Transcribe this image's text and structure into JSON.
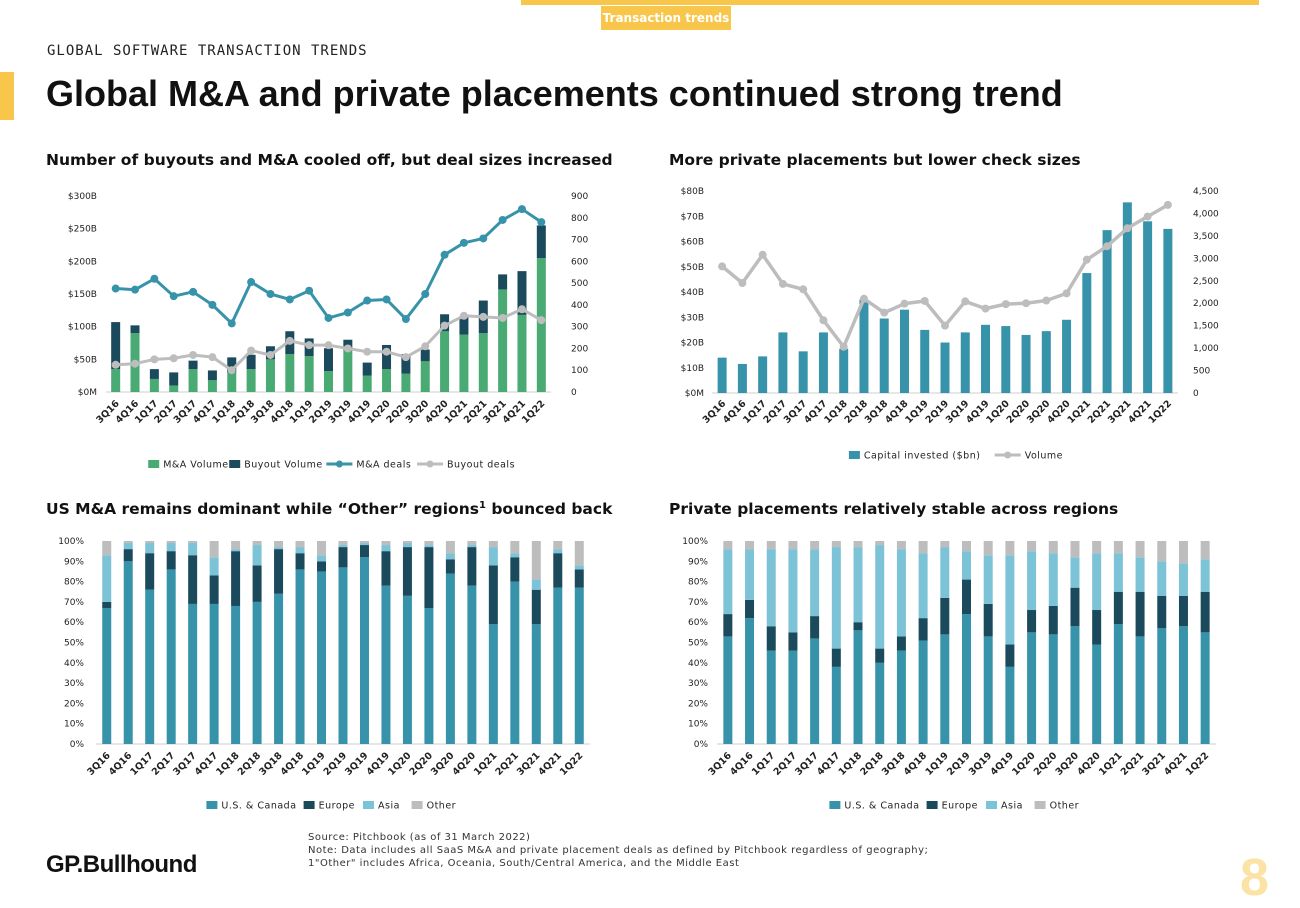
{
  "header": {
    "tag": "Transaction trends",
    "kicker": "GLOBAL SOFTWARE TRANSACTION TRENDS",
    "title": "Global M&A and private placements continued strong trend"
  },
  "colors": {
    "accent": "#f7c64b",
    "ma_volume": "#4aaa73",
    "buyout_volume": "#1b4a5c",
    "ma_deals": "#3793a9",
    "buyout_deals": "#bdbdbd",
    "capital": "#3793a9",
    "us_canada": "#3793a9",
    "europe": "#1b4a5c",
    "asia": "#7cc3d8",
    "other": "#bdbdbd"
  },
  "chart_data": [
    {
      "type": "bar",
      "title": "Number of buyouts and M&A cooled off, but deal sizes increased",
      "categories": [
        "3Q16",
        "4Q16",
        "1Q17",
        "2Q17",
        "3Q17",
        "4Q17",
        "1Q18",
        "2Q18",
        "3Q18",
        "4Q18",
        "1Q19",
        "2Q19",
        "3Q19",
        "4Q19",
        "1Q20",
        "2Q20",
        "3Q20",
        "4Q20",
        "1Q21",
        "2Q21",
        "3Q21",
        "4Q21",
        "1Q22"
      ],
      "y_left_ticks": [
        "$0M",
        "$50B",
        "$100B",
        "$150B",
        "$200B",
        "$250B",
        "$300B"
      ],
      "ylim_left": [
        0,
        300
      ],
      "y_right_ticks": [
        "0",
        "100",
        "200",
        "300",
        "400",
        "500",
        "600",
        "700",
        "800",
        "900"
      ],
      "ylim_right": [
        0,
        900
      ],
      "series": [
        {
          "name": "M&A Volume",
          "kind": "bar",
          "axis": "left",
          "values": [
            35,
            90,
            20,
            10,
            35,
            18,
            30,
            35,
            50,
            58,
            55,
            32,
            65,
            25,
            35,
            28,
            47,
            93,
            88,
            90,
            157,
            118,
            205
          ]
        },
        {
          "name": "Buyout Volume",
          "kind": "bar",
          "axis": "left",
          "values": [
            72,
            12,
            15,
            20,
            13,
            15,
            23,
            22,
            20,
            35,
            27,
            35,
            15,
            20,
            37,
            30,
            18,
            26,
            28,
            50,
            23,
            67,
            50
          ]
        },
        {
          "name": "M&A deals",
          "kind": "line",
          "axis": "right",
          "values": [
            475,
            470,
            520,
            440,
            460,
            400,
            315,
            505,
            450,
            425,
            465,
            340,
            365,
            420,
            425,
            335,
            450,
            630,
            685,
            705,
            790,
            840,
            780
          ]
        },
        {
          "name": "Buyout deals",
          "kind": "line",
          "axis": "right",
          "values": [
            125,
            130,
            150,
            155,
            170,
            160,
            100,
            190,
            170,
            235,
            215,
            215,
            200,
            185,
            185,
            160,
            210,
            305,
            350,
            345,
            340,
            380,
            330
          ]
        }
      ]
    },
    {
      "type": "bar",
      "title": "More private placements but lower check sizes",
      "categories": [
        "3Q16",
        "4Q16",
        "1Q17",
        "2Q17",
        "3Q17",
        "4Q17",
        "1Q18",
        "2Q18",
        "3Q18",
        "4Q18",
        "1Q19",
        "2Q19",
        "3Q19",
        "4Q19",
        "1Q20",
        "2Q20",
        "3Q20",
        "4Q20",
        "1Q21",
        "2Q21",
        "3Q21",
        "4Q21",
        "1Q22"
      ],
      "y_left_ticks": [
        "$0M",
        "$10B",
        "$20B",
        "$30B",
        "$40B",
        "$50B",
        "$60B",
        "$70B",
        "$80B"
      ],
      "ylim_left": [
        0,
        80
      ],
      "y_right_ticks": [
        "0",
        "500",
        "1,000",
        "1,500",
        "2,000",
        "2,500",
        "3,000",
        "3,500",
        "4,000",
        "4,500"
      ],
      "ylim_right": [
        0,
        4500
      ],
      "series": [
        {
          "name": "Capital invested ($bn)",
          "kind": "bar",
          "axis": "left",
          "values": [
            14,
            11.5,
            14.5,
            24,
            16.5,
            24,
            17.5,
            37,
            29.5,
            33,
            25,
            20,
            24,
            27,
            26.5,
            23,
            24.5,
            29,
            47.5,
            64.5,
            75.5,
            68,
            65
          ]
        },
        {
          "name": "Volume",
          "kind": "line",
          "axis": "right",
          "values": [
            2820,
            2450,
            3080,
            2430,
            2310,
            1620,
            1030,
            2100,
            1790,
            1990,
            2050,
            1500,
            2040,
            1880,
            1980,
            2000,
            2060,
            2220,
            2970,
            3270,
            3670,
            3930,
            4190
          ]
        }
      ]
    },
    {
      "type": "bar",
      "title": "US M&A remains dominant while “Other” regions",
      "title_sup": "1",
      "title_tail": " bounced back",
      "stacked_percent": true,
      "categories": [
        "3Q16",
        "4Q16",
        "1Q17",
        "2Q17",
        "3Q17",
        "4Q17",
        "1Q18",
        "2Q18",
        "3Q18",
        "4Q18",
        "1Q19",
        "2Q19",
        "3Q19",
        "4Q19",
        "1Q20",
        "2Q20",
        "3Q20",
        "4Q20",
        "1Q21",
        "2Q21",
        "3Q21",
        "4Q21",
        "1Q22"
      ],
      "y_ticks": [
        "0%",
        "10%",
        "20%",
        "30%",
        "40%",
        "50%",
        "60%",
        "70%",
        "80%",
        "90%",
        "100%"
      ],
      "ylim": [
        0,
        100
      ],
      "series": [
        {
          "name": "U.S. & Canada",
          "values": [
            67,
            90,
            76,
            86,
            69,
            69,
            68,
            70,
            74,
            86,
            85,
            87,
            92,
            78,
            73,
            67,
            84,
            78,
            59,
            80,
            59,
            77,
            77
          ]
        },
        {
          "name": "Europe",
          "values": [
            3,
            6,
            18,
            9,
            24,
            14,
            27,
            18,
            22,
            8,
            5,
            10,
            6,
            17,
            24,
            30,
            7,
            19,
            29,
            12,
            17,
            17,
            9
          ]
        },
        {
          "name": "Asia",
          "values": [
            23,
            3,
            5,
            4,
            6,
            9,
            1,
            10,
            1,
            3,
            3,
            1,
            1,
            3,
            2,
            1,
            3,
            1,
            9,
            2,
            5,
            2,
            2
          ]
        },
        {
          "name": "Other",
          "values": [
            7,
            1,
            1,
            1,
            1,
            8,
            4,
            2,
            3,
            3,
            7,
            2,
            1,
            2,
            1,
            2,
            6,
            2,
            3,
            6,
            19,
            4,
            12
          ]
        }
      ]
    },
    {
      "type": "bar",
      "title": "Private placements relatively stable across regions",
      "stacked_percent": true,
      "categories": [
        "3Q16",
        "4Q16",
        "1Q17",
        "2Q17",
        "3Q17",
        "4Q17",
        "1Q18",
        "2Q18",
        "3Q18",
        "4Q18",
        "1Q19",
        "2Q19",
        "3Q19",
        "4Q19",
        "1Q20",
        "2Q20",
        "3Q20",
        "4Q20",
        "1Q21",
        "2Q21",
        "3Q21",
        "4Q21",
        "1Q22"
      ],
      "y_ticks": [
        "0%",
        "10%",
        "20%",
        "30%",
        "40%",
        "50%",
        "60%",
        "70%",
        "80%",
        "90%",
        "100%"
      ],
      "ylim": [
        0,
        100
      ],
      "series": [
        {
          "name": "U.S. & Canada",
          "values": [
            53,
            62,
            46,
            46,
            52,
            38,
            56,
            40,
            46,
            51,
            54,
            64,
            53,
            38,
            55,
            54,
            58,
            49,
            59,
            53,
            57,
            58,
            55
          ]
        },
        {
          "name": "Europe",
          "values": [
            11,
            9,
            12,
            9,
            11,
            9,
            4,
            7,
            7,
            11,
            18,
            17,
            16,
            11,
            11,
            14,
            19,
            17,
            16,
            22,
            16,
            15,
            20
          ]
        },
        {
          "name": "Asia",
          "values": [
            32,
            25,
            38,
            41,
            33,
            50,
            37,
            51,
            43,
            32,
            25,
            14,
            24,
            44,
            29,
            26,
            15,
            28,
            19,
            17,
            17,
            16,
            16
          ]
        },
        {
          "name": "Other",
          "values": [
            4,
            4,
            4,
            4,
            4,
            3,
            3,
            2,
            4,
            6,
            3,
            5,
            7,
            7,
            5,
            6,
            8,
            6,
            6,
            8,
            10,
            11,
            9
          ]
        }
      ]
    }
  ],
  "footer": {
    "source": "Source: Pitchbook (as of 31 March 2022)",
    "note": "Note: Data includes all SaaS M&A and private placement deals as defined by Pitchbook regardless of geography;",
    "footnote": "1\"Other\" includes Africa, Oceania, South/Central America, and the Middle East"
  },
  "logo": "GP.Bullhound",
  "page_number": "8"
}
